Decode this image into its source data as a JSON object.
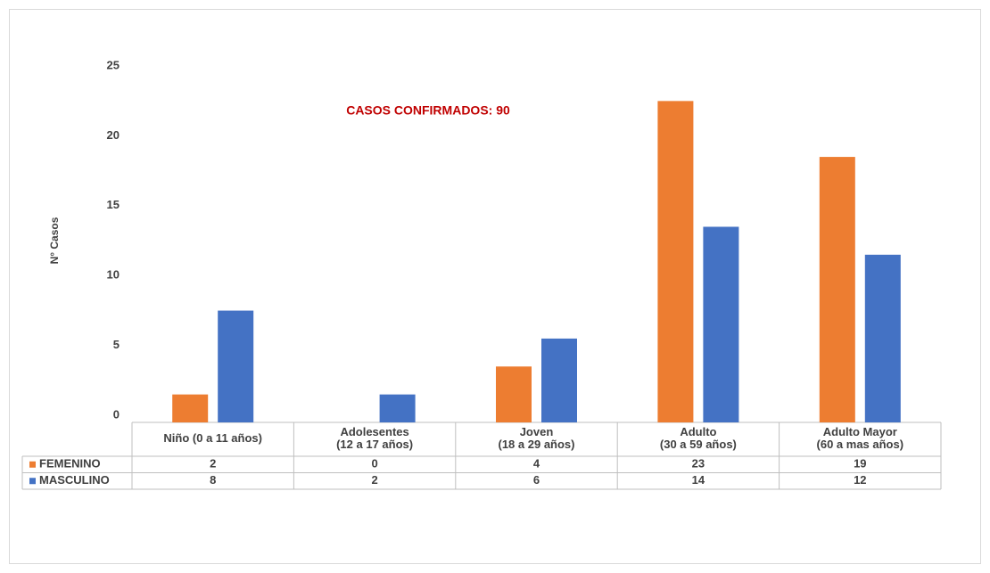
{
  "chart_data": {
    "type": "bar",
    "title": "CASOS CONFIRMADOS: 90",
    "y_label": "N° Casos",
    "categories": [
      "Niño (0 a 11 años)",
      "Adolesentes\n(12 a 17 años)",
      "Joven\n(18 a 29 años)",
      "Adulto\n(30 a 59 años)",
      "Adulto Mayor\n(60 a mas años)"
    ],
    "series": [
      {
        "name": "FEMENINO",
        "color": "#ed7d31",
        "values": [
          2,
          0,
          4,
          23,
          19
        ]
      },
      {
        "name": "MASCULINO",
        "color": "#4472c4",
        "values": [
          8,
          2,
          6,
          14,
          12
        ]
      }
    ],
    "ylim": [
      0,
      25
    ],
    "yticks": [
      0,
      5,
      10,
      15,
      20,
      25
    ],
    "grid": false
  }
}
